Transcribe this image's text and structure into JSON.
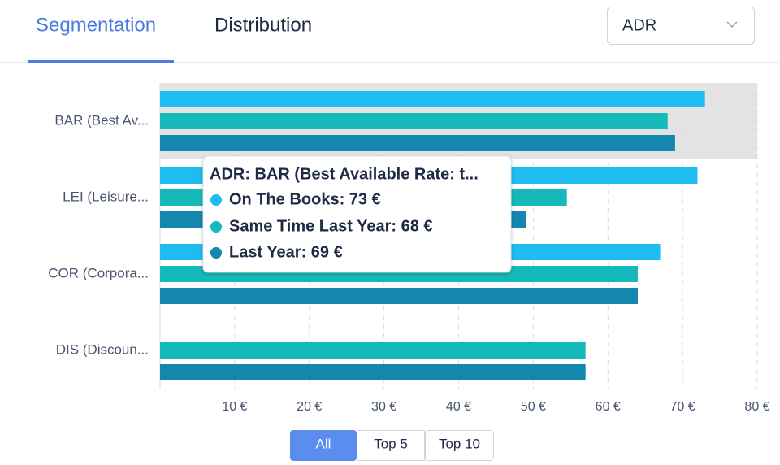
{
  "tabs": [
    "Segmentation",
    "Distribution"
  ],
  "dropdown": "ADR",
  "chart_data": {
    "type": "bar",
    "orientation": "horizontal",
    "categories": [
      "BAR (Best Av...",
      "LEI (Leisure...",
      "COR (Corpora...",
      "DIS (Discoun..."
    ],
    "series": [
      {
        "color": "#1ebcf0",
        "values": [
          73,
          72,
          67,
          null
        ]
      },
      {
        "color": "#16b9b9",
        "values": [
          68,
          54.5,
          64,
          57
        ]
      },
      {
        "color": "#1487b0",
        "values": [
          69,
          49,
          64,
          57
        ]
      }
    ],
    "xlim": [
      0,
      80
    ],
    "xticks": [
      {
        "value": 10,
        "label": "10 €"
      },
      {
        "value": 20,
        "label": "20 €"
      },
      {
        "value": 30,
        "label": "30 €"
      },
      {
        "value": 40,
        "label": "40 €"
      },
      {
        "value": 50,
        "label": "50 €"
      },
      {
        "value": 60,
        "label": "60 €"
      },
      {
        "value": 70,
        "label": "70 €"
      },
      {
        "value": 80,
        "label": "80 €"
      }
    ],
    "grid": true
  },
  "tooltip": {
    "title": "ADR: BAR (Best Available Rate: t...",
    "items": [
      "On The Books: 73 €",
      "Same Time Last Year: 68 €",
      "Last Year: 69 €"
    ]
  },
  "filters": [
    "All",
    "Top 5",
    "Top 10"
  ]
}
